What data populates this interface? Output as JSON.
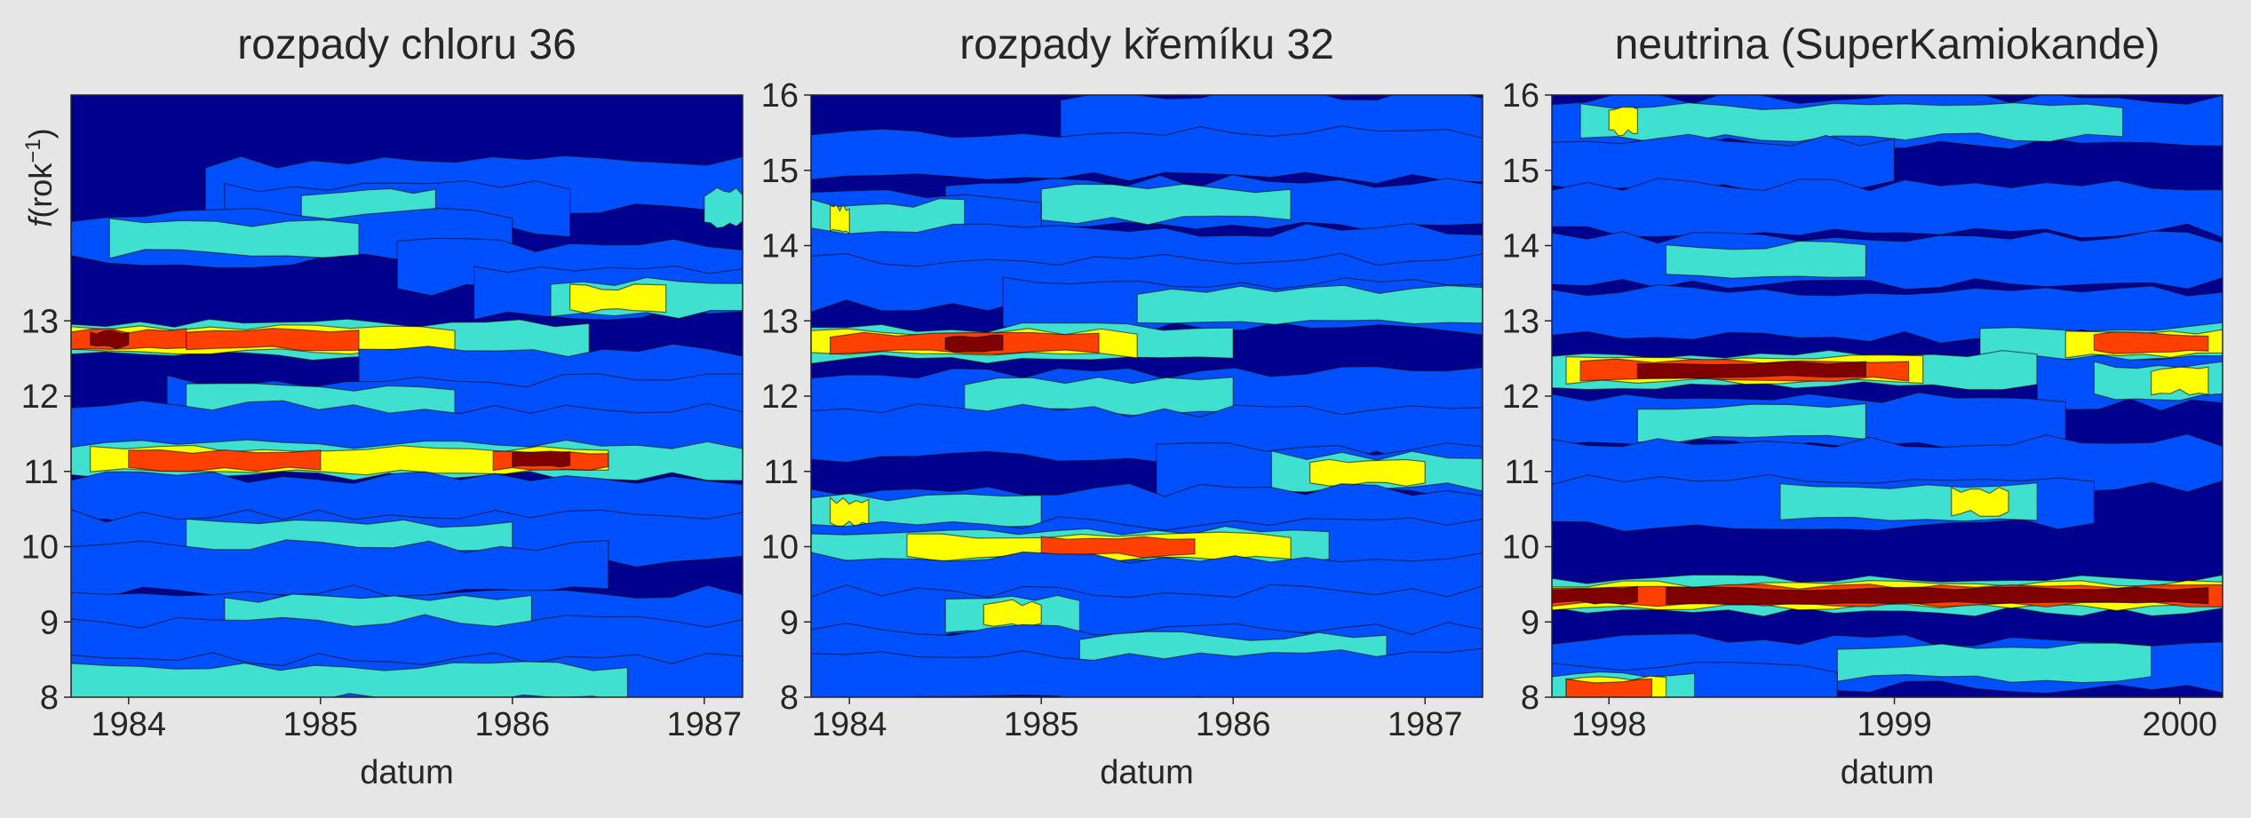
{
  "ylabel": {
    "italic": "f",
    "rest": "(rok",
    "sup": "−1",
    "close": ")"
  },
  "chart_data": [
    {
      "type": "heatmap",
      "title": "rozpady chloru 36",
      "xlabel": "datum",
      "xticks": [
        "1984",
        "1985",
        "1986",
        "1987"
      ],
      "xlim": [
        1983.7,
        1987.2
      ],
      "yticks": [
        "8",
        "9",
        "10",
        "11",
        "12",
        "13"
      ],
      "ylim": [
        8,
        16
      ],
      "colormap": [
        "#00008f",
        "#0050ff",
        "#3fe0d0",
        "#ffff00",
        "#ff4000",
        "#800000"
      ],
      "bands": [
        {
          "y": 15.3,
          "segments": [
            [
              1983.7,
              1987.2,
              0
            ]
          ]
        },
        {
          "y": 14.8,
          "segments": [
            [
              1984.4,
              1987.2,
              1
            ]
          ]
        },
        {
          "y": 14.5,
          "segments": [
            [
              1984.5,
              1986.3,
              1
            ],
            [
              1984.9,
              1985.6,
              2
            ],
            [
              1987.0,
              1987.2,
              2
            ]
          ]
        },
        {
          "y": 14.1,
          "segments": [
            [
              1983.7,
              1986.0,
              1
            ],
            [
              1983.9,
              1985.2,
              2
            ]
          ]
        },
        {
          "y": 13.7,
          "segments": [
            [
              1985.4,
              1987.2,
              1
            ]
          ]
        },
        {
          "y": 13.4,
          "segments": [
            [
              1985.8,
              1987.2,
              1
            ]
          ]
        },
        {
          "y": 13.3,
          "segments": [
            [
              1986.2,
              1987.2,
              2
            ],
            [
              1986.3,
              1986.8,
              3
            ]
          ]
        },
        {
          "y": 12.75,
          "segments": [
            [
              1983.7,
              1986.4,
              2
            ],
            [
              1983.7,
              1985.7,
              3
            ],
            [
              1983.7,
              1984.3,
              4
            ],
            [
              1984.3,
              1985.2,
              4
            ],
            [
              1983.8,
              1984.0,
              5
            ]
          ]
        },
        {
          "y": 12.3,
          "segments": [
            [
              1985.2,
              1987.2,
              1
            ]
          ]
        },
        {
          "y": 11.9,
          "segments": [
            [
              1984.2,
              1987.2,
              1
            ],
            [
              1984.3,
              1985.7,
              2
            ]
          ]
        },
        {
          "y": 11.55,
          "segments": [
            [
              1983.7,
              1987.2,
              1
            ]
          ]
        },
        {
          "y": 11.15,
          "segments": [
            [
              1983.7,
              1987.2,
              2
            ],
            [
              1983.8,
              1986.5,
              3
            ],
            [
              1984.0,
              1985.0,
              4
            ],
            [
              1985.9,
              1986.5,
              4
            ],
            [
              1986.0,
              1986.3,
              5
            ]
          ]
        },
        {
          "y": 10.6,
          "segments": [
            [
              1983.7,
              1987.2,
              1
            ]
          ]
        },
        {
          "y": 10.1,
          "segments": [
            [
              1983.7,
              1987.2,
              1
            ],
            [
              1984.3,
              1986.0,
              2
            ]
          ]
        },
        {
          "y": 9.7,
          "segments": [
            [
              1983.7,
              1986.5,
              1
            ]
          ]
        },
        {
          "y": 9.1,
          "segments": [
            [
              1983.7,
              1987.2,
              1
            ],
            [
              1984.5,
              1986.1,
              2
            ]
          ]
        },
        {
          "y": 8.7,
          "segments": [
            [
              1983.7,
              1987.2,
              1
            ]
          ]
        },
        {
          "y": 8.2,
          "segments": [
            [
              1983.7,
              1987.2,
              1
            ],
            [
              1983.7,
              1986.6,
              2
            ]
          ]
        }
      ]
    },
    {
      "type": "heatmap",
      "title": "rozpady křemíku 32",
      "xlabel": "datum",
      "xticks": [
        "1984",
        "1985",
        "1986",
        "1987"
      ],
      "xlim": [
        1983.8,
        1987.3
      ],
      "yticks": [
        "8",
        "9",
        "10",
        "11",
        "12",
        "13",
        "14",
        "15",
        "16"
      ],
      "ylim": [
        8,
        16
      ],
      "colormap": [
        "#00008f",
        "#0050ff",
        "#3fe0d0",
        "#ffff00",
        "#ff4000",
        "#800000"
      ],
      "bands": [
        {
          "y": 15.7,
          "segments": [
            [
              1985.1,
              1987.3,
              1
            ]
          ]
        },
        {
          "y": 15.2,
          "segments": [
            [
              1983.8,
              1987.3,
              1
            ]
          ]
        },
        {
          "y": 14.55,
          "segments": [
            [
              1984.5,
              1987.3,
              1
            ],
            [
              1985.0,
              1986.3,
              2
            ]
          ]
        },
        {
          "y": 14.35,
          "segments": [
            [
              1983.8,
              1985.0,
              1
            ],
            [
              1983.8,
              1984.6,
              2
            ],
            [
              1983.9,
              1984.0,
              3
            ]
          ]
        },
        {
          "y": 13.9,
          "segments": [
            [
              1983.8,
              1987.3,
              1
            ]
          ]
        },
        {
          "y": 13.5,
          "segments": [
            [
              1983.8,
              1987.3,
              1
            ]
          ]
        },
        {
          "y": 13.2,
          "segments": [
            [
              1984.8,
              1987.3,
              1
            ],
            [
              1985.5,
              1987.3,
              2
            ]
          ]
        },
        {
          "y": 12.7,
          "segments": [
            [
              1983.8,
              1986.0,
              2
            ],
            [
              1983.8,
              1985.5,
              3
            ],
            [
              1983.9,
              1985.3,
              4
            ],
            [
              1984.5,
              1984.8,
              5
            ]
          ]
        },
        {
          "y": 12.0,
          "segments": [
            [
              1983.8,
              1987.3,
              1
            ],
            [
              1984.6,
              1986.0,
              2
            ]
          ]
        },
        {
          "y": 11.5,
          "segments": [
            [
              1983.8,
              1987.3,
              1
            ]
          ]
        },
        {
          "y": 11.0,
          "segments": [
            [
              1985.6,
              1987.3,
              1
            ],
            [
              1986.2,
              1987.3,
              2
            ],
            [
              1986.4,
              1987.0,
              3
            ]
          ]
        },
        {
          "y": 10.45,
          "segments": [
            [
              1983.8,
              1987.3,
              1
            ],
            [
              1983.8,
              1985.0,
              2
            ],
            [
              1983.9,
              1984.1,
              3
            ]
          ]
        },
        {
          "y": 10.0,
          "segments": [
            [
              1983.8,
              1987.3,
              1
            ],
            [
              1983.8,
              1986.5,
              2
            ],
            [
              1984.3,
              1986.3,
              3
            ],
            [
              1985.0,
              1985.8,
              4
            ]
          ]
        },
        {
          "y": 9.55,
          "segments": [
            [
              1983.8,
              1987.3,
              1
            ]
          ]
        },
        {
          "y": 9.1,
          "segments": [
            [
              1983.8,
              1987.3,
              1
            ],
            [
              1984.5,
              1985.2,
              2
            ],
            [
              1984.7,
              1985.0,
              3
            ]
          ]
        },
        {
          "y": 8.6,
          "segments": [
            [
              1983.8,
              1987.3,
              1
            ],
            [
              1985.2,
              1986.8,
              2
            ]
          ]
        },
        {
          "y": 8.25,
          "segments": [
            [
              1983.8,
              1987.3,
              1
            ]
          ]
        }
      ]
    },
    {
      "type": "heatmap",
      "title": "neutrina (SuperKamiokande)",
      "xlabel": "datum",
      "xticks": [
        "1998",
        "1999",
        "2000"
      ],
      "xlim": [
        1997.8,
        2000.15
      ],
      "yticks": [
        "8",
        "9",
        "10",
        "11",
        "12",
        "13",
        "14",
        "15",
        "16"
      ],
      "ylim": [
        8,
        16
      ],
      "colormap": [
        "#00008f",
        "#0050ff",
        "#3fe0d0",
        "#ffff00",
        "#ff4000",
        "#800000"
      ],
      "bands": [
        {
          "y": 15.65,
          "segments": [
            [
              1997.8,
              2000.15,
              1
            ],
            [
              1997.9,
              1999.8,
              2
            ],
            [
              1998.0,
              1998.1,
              3
            ]
          ]
        },
        {
          "y": 15.1,
          "segments": [
            [
              1997.8,
              1999.0,
              1
            ]
          ]
        },
        {
          "y": 14.5,
          "segments": [
            [
              1997.8,
              2000.15,
              1
            ]
          ]
        },
        {
          "y": 13.8,
          "segments": [
            [
              1997.8,
              2000.15,
              1
            ],
            [
              1998.2,
              1998.9,
              2
            ]
          ]
        },
        {
          "y": 13.1,
          "segments": [
            [
              1997.8,
              2000.15,
              1
            ]
          ]
        },
        {
          "y": 12.7,
          "segments": [
            [
              1999.3,
              2000.15,
              2
            ],
            [
              1999.6,
              2000.15,
              3
            ],
            [
              1999.7,
              2000.1,
              4
            ]
          ]
        },
        {
          "y": 12.35,
          "segments": [
            [
              1997.8,
              1999.5,
              2
            ],
            [
              1997.85,
              1999.1,
              3
            ],
            [
              1997.9,
              1999.05,
              4
            ],
            [
              1998.1,
              1998.9,
              5
            ]
          ]
        },
        {
          "y": 12.2,
          "segments": [
            [
              1999.5,
              2000.15,
              1
            ],
            [
              1999.7,
              2000.15,
              2
            ],
            [
              1999.9,
              2000.1,
              3
            ]
          ]
        },
        {
          "y": 11.65,
          "segments": [
            [
              1997.8,
              1999.6,
              1
            ],
            [
              1998.1,
              1998.9,
              2
            ]
          ]
        },
        {
          "y": 11.1,
          "segments": [
            [
              1997.8,
              2000.15,
              1
            ]
          ]
        },
        {
          "y": 10.6,
          "segments": [
            [
              1997.8,
              1999.7,
              1
            ],
            [
              1998.6,
              1999.5,
              2
            ],
            [
              1999.2,
              1999.4,
              3
            ]
          ]
        },
        {
          "y": 9.35,
          "segments": [
            [
              1997.8,
              2000.15,
              2
            ],
            [
              1997.8,
              2000.15,
              3
            ],
            [
              1997.8,
              2000.15,
              4
            ],
            [
              1997.8,
              1998.1,
              5
            ],
            [
              1998.2,
              2000.1,
              5
            ]
          ]
        },
        {
          "y": 8.45,
          "segments": [
            [
              1997.8,
              2000.15,
              1
            ],
            [
              1998.8,
              1999.9,
              2
            ]
          ]
        },
        {
          "y": 8.1,
          "segments": [
            [
              1997.8,
              1998.8,
              1
            ],
            [
              1997.8,
              1998.3,
              2
            ],
            [
              1997.85,
              1998.2,
              3
            ],
            [
              1997.85,
              1998.15,
              4
            ]
          ]
        }
      ]
    }
  ]
}
